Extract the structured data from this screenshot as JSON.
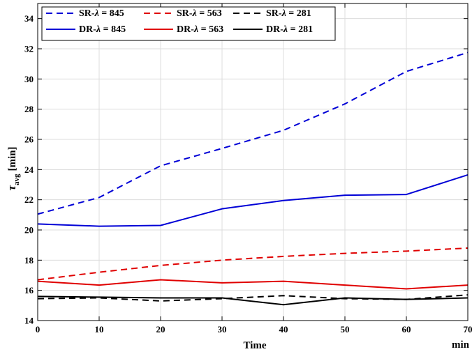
{
  "chart_data": {
    "type": "line",
    "xlabel": "Time",
    "x_unit": "min",
    "ylabel_symbol": "τ",
    "ylabel_subscript": "avg",
    "ylabel_unit": "[min]",
    "xlim": [
      0,
      70
    ],
    "ylim": [
      14,
      35
    ],
    "xticks": [
      0,
      10,
      20,
      30,
      40,
      50,
      60,
      70
    ],
    "yticks": [
      14,
      16,
      18,
      20,
      22,
      24,
      26,
      28,
      30,
      32,
      34
    ],
    "grid": true,
    "legend_position": "top-left",
    "x": [
      0,
      10,
      20,
      30,
      40,
      50,
      60,
      70
    ],
    "series": [
      {
        "name": "SR-λ = 845",
        "prefix": "SR-",
        "lambda": "λ",
        "suffix": " = 845",
        "color": "#0000d6",
        "dash": "dashed",
        "values": [
          21.05,
          22.15,
          24.25,
          25.4,
          26.6,
          28.35,
          30.5,
          31.75
        ]
      },
      {
        "name": "SR-λ = 563",
        "prefix": "SR-",
        "lambda": "λ",
        "suffix": " = 563",
        "color": "#e00000",
        "dash": "dashed",
        "values": [
          16.7,
          17.2,
          17.65,
          18.0,
          18.25,
          18.45,
          18.6,
          18.8
        ]
      },
      {
        "name": "SR-λ = 281",
        "prefix": "SR-",
        "lambda": "λ",
        "suffix": " = 281",
        "color": "#000000",
        "dash": "dashed",
        "values": [
          15.45,
          15.5,
          15.3,
          15.45,
          15.65,
          15.45,
          15.4,
          15.7
        ]
      },
      {
        "name": "DR-λ = 845",
        "prefix": "DR-",
        "lambda": "λ",
        "suffix": " = 845",
        "color": "#0000d6",
        "dash": "solid",
        "values": [
          20.4,
          20.25,
          20.3,
          21.4,
          21.95,
          22.3,
          22.35,
          23.65
        ]
      },
      {
        "name": "DR-λ = 563",
        "prefix": "DR-",
        "lambda": "λ",
        "suffix": " = 563",
        "color": "#e00000",
        "dash": "solid",
        "values": [
          16.6,
          16.35,
          16.7,
          16.5,
          16.6,
          16.35,
          16.1,
          16.35
        ]
      },
      {
        "name": "DR-λ = 281",
        "prefix": "DR-",
        "lambda": "λ",
        "suffix": " = 281",
        "color": "#000000",
        "dash": "solid",
        "values": [
          15.6,
          15.55,
          15.5,
          15.5,
          15.05,
          15.5,
          15.4,
          15.5
        ]
      }
    ]
  }
}
